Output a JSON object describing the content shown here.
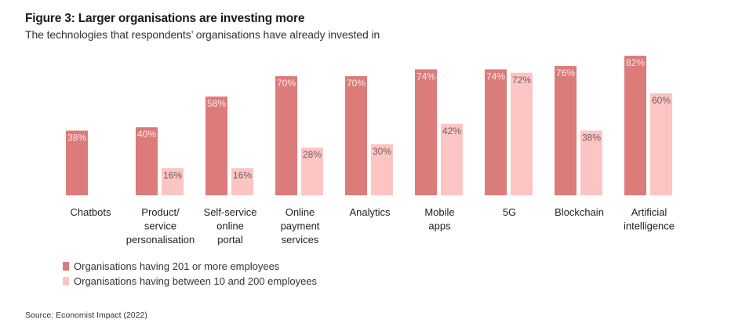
{
  "title": "Figure 3: Larger organisations are investing more",
  "subtitle": "The technologies that respondents’ organisations have already invested in",
  "source": "Source: Economist Impact (2022)",
  "colors": {
    "large": "#db7b7a",
    "small": "#fcc5c3",
    "label_on_large": "#fbeaea",
    "label_on_small": "#6e5f5f",
    "category_text": "#222222"
  },
  "chart_data": {
    "type": "bar",
    "title": "Figure 3: Larger organisations are investing more",
    "subtitle": "The technologies that respondents’ organisations have already invested in",
    "xlabel": "",
    "ylabel": "",
    "ylim": [
      0,
      100
    ],
    "grid": false,
    "legend_position": "bottom-left",
    "categories": [
      [
        "Chatbots"
      ],
      [
        "Product/",
        "service",
        "personalisation"
      ],
      [
        "Self-service",
        "online",
        "portal"
      ],
      [
        "Online",
        "payment",
        "services"
      ],
      [
        "Analytics"
      ],
      [
        "Mobile",
        "apps"
      ],
      [
        "5G"
      ],
      [
        "Blockchain"
      ],
      [
        "Artificial",
        "intelligence"
      ]
    ],
    "series": [
      {
        "name": "Organisations having 201 or more employees",
        "values": [
          38,
          40,
          58,
          70,
          70,
          74,
          74,
          76,
          82
        ]
      },
      {
        "name": "Organisations having between 10 and 200 employees",
        "values": [
          null,
          16,
          16,
          28,
          30,
          42,
          72,
          38,
          60
        ]
      }
    ],
    "value_suffix": "%"
  }
}
